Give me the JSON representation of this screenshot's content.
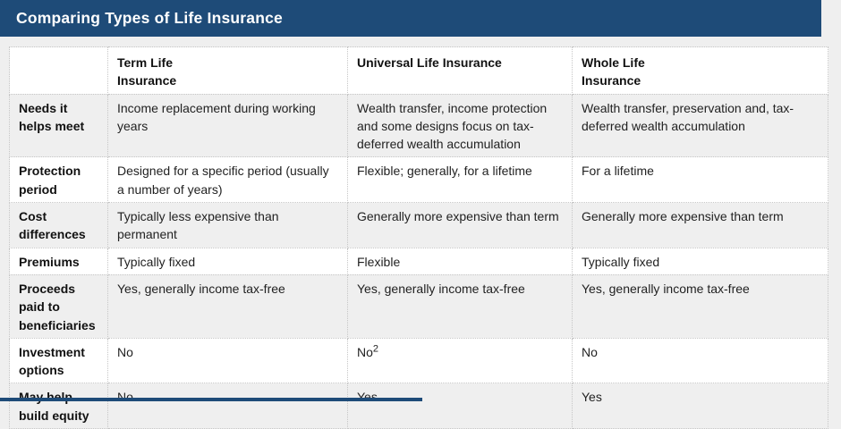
{
  "colors": {
    "navy": "#1e4b78",
    "page_background": "#efefef",
    "white_row": "#ffffff",
    "gray_row": "#efefef",
    "dotted_border": "#c6c6c6"
  },
  "header": {
    "title": "Comparing Types of Life Insurance"
  },
  "table": {
    "columns": [
      "",
      "Term Life\nInsurance",
      "Universal Life Insurance",
      "Whole Life\nInsurance"
    ],
    "rows": [
      {
        "label": "Needs it helps meet",
        "cells": [
          "Income replacement during working years",
          "Wealth transfer, income protection and some designs focus on tax-deferred wealth accumulation",
          "Wealth transfer, preservation and, tax-deferred wealth accumulation"
        ]
      },
      {
        "label": "Protection period",
        "cells": [
          "Designed for a specific period (usually a number of years)",
          "Flexible; generally, for a lifetime",
          "For a lifetime"
        ]
      },
      {
        "label": "Cost differences",
        "cells": [
          "Typically less expensive than permanent",
          "Generally more expensive than term",
          "Generally more expensive than term"
        ]
      },
      {
        "label": "Premiums",
        "cells": [
          "Typically fixed",
          "Flexible",
          "Typically fixed"
        ]
      },
      {
        "label": "Proceeds paid to beneficiaries",
        "cells": [
          "Yes, generally income tax-free",
          "Yes, generally income tax-free",
          "Yes, generally income tax-free"
        ]
      },
      {
        "label": "Investment options",
        "cells": [
          "No",
          "No",
          "No"
        ],
        "sup": "2"
      },
      {
        "label": "May help build equity",
        "cells": [
          "No",
          "Yes",
          "Yes"
        ]
      }
    ]
  }
}
